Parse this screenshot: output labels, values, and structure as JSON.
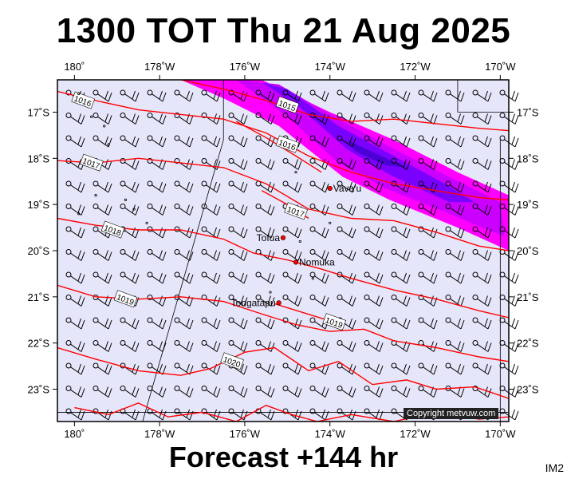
{
  "title": "1300 TOT Thu 21 Aug 2025",
  "footer": "Forecast +144 hr",
  "corner_tag": "IM2",
  "copyright": "Copyright metvuw.com",
  "colors": {
    "background": "#e6e6fa",
    "isobar": "#ff0000",
    "rain_light": "#ff00ff",
    "rain_medium": "#cc00ff",
    "rain_heavy": "#7a00ff",
    "rain_heaviest": "#4b00d6",
    "coast": "#000000",
    "place_marker": "#ff0000"
  },
  "map": {
    "lon_min": -180.4,
    "lon_max": -169.8,
    "lat_min": -23.7,
    "lat_max": -16.3,
    "lon_ticks": [
      {
        "value": -180,
        "label": "180˚"
      },
      {
        "value": -178,
        "label": "178˚W"
      },
      {
        "value": -176,
        "label": "176˚W"
      },
      {
        "value": -174,
        "label": "174˚W"
      },
      {
        "value": -172,
        "label": "172˚W"
      },
      {
        "value": -170,
        "label": "170˚W"
      }
    ],
    "lat_ticks": [
      {
        "value": -17,
        "label": "17˚S"
      },
      {
        "value": -18,
        "label": "18˚S"
      },
      {
        "value": -19,
        "label": "19˚S"
      },
      {
        "value": -20,
        "label": "20˚S"
      },
      {
        "value": -21,
        "label": "21˚S"
      },
      {
        "value": -22,
        "label": "22˚S"
      },
      {
        "value": -23,
        "label": "23˚S"
      }
    ],
    "places": [
      {
        "name": "Vava'u",
        "lon": -174.0,
        "lat": -18.65
      },
      {
        "name": "Tofua",
        "lon": -175.1,
        "lat": -19.72
      },
      {
        "name": "Nomuka",
        "lon": -174.8,
        "lat": -20.25
      },
      {
        "name": "Tongatapu",
        "lon": -175.2,
        "lat": -21.13
      }
    ],
    "isobars": [
      {
        "label": "1015",
        "label_lon": -175.0,
        "label_lat": -16.85,
        "points": [
          [
            -177.5,
            -16.3
          ],
          [
            -176.5,
            -16.5
          ],
          [
            -175.5,
            -16.75
          ],
          [
            -174.5,
            -17.05
          ],
          [
            -173.5,
            -17.2
          ],
          [
            -172.5,
            -17.15
          ],
          [
            -171.5,
            -17.25
          ],
          [
            -170.5,
            -17.35
          ],
          [
            -169.8,
            -17.4
          ]
        ]
      },
      {
        "label": "1016",
        "label_lon": -179.8,
        "label_lat": -16.75,
        "points": [
          [
            -180.4,
            -16.55
          ],
          [
            -179.5,
            -16.75
          ],
          [
            -178.5,
            -16.95
          ],
          [
            -177.5,
            -17.05
          ],
          [
            -176.5,
            -17.15
          ],
          [
            -175.5,
            -17.45
          ],
          [
            -174.5,
            -17.95
          ],
          [
            -173.5,
            -18.3
          ],
          [
            -172.5,
            -18.55
          ],
          [
            -171.5,
            -18.7
          ],
          [
            -170.5,
            -18.85
          ],
          [
            -169.8,
            -18.9
          ]
        ]
      },
      {
        "label": "1016",
        "label_lon": -175.0,
        "label_lat": -17.7,
        "points": [
          [
            -176.2,
            -17.2
          ],
          [
            -175.5,
            -17.55
          ],
          [
            -174.8,
            -17.95
          ],
          [
            -174.2,
            -18.3
          ]
        ]
      },
      {
        "label": "1017",
        "label_lon": -179.6,
        "label_lat": -18.1,
        "points": [
          [
            -180.4,
            -18.05
          ],
          [
            -179.5,
            -18.1
          ],
          [
            -178.5,
            -18.0
          ],
          [
            -177.5,
            -18.1
          ],
          [
            -176.5,
            -18.2
          ],
          [
            -175.5,
            -18.55
          ],
          [
            -174.5,
            -19.1
          ],
          [
            -173.5,
            -19.3
          ],
          [
            -172.5,
            -19.35
          ],
          [
            -171.5,
            -19.6
          ],
          [
            -170.5,
            -19.9
          ],
          [
            -169.8,
            -20.0
          ]
        ]
      },
      {
        "label": "1017",
        "label_lon": -174.8,
        "label_lat": -19.15,
        "points": [
          [
            -175.6,
            -18.7
          ],
          [
            -175.0,
            -19.0
          ],
          [
            -174.5,
            -19.3
          ]
        ]
      },
      {
        "label": "1018",
        "label_lon": -179.1,
        "label_lat": -19.55,
        "points": [
          [
            -180.4,
            -19.3
          ],
          [
            -179.5,
            -19.45
          ],
          [
            -178.5,
            -19.55
          ],
          [
            -177.5,
            -19.55
          ],
          [
            -176.5,
            -19.75
          ],
          [
            -175.8,
            -20.05
          ],
          [
            -175.0,
            -20.2
          ],
          [
            -174.2,
            -20.4
          ],
          [
            -173.5,
            -20.6
          ],
          [
            -172.5,
            -20.85
          ],
          [
            -171.5,
            -21.05
          ],
          [
            -170.5,
            -21.3
          ],
          [
            -169.8,
            -21.45
          ]
        ]
      },
      {
        "label": "1019",
        "label_lon": -178.8,
        "label_lat": -21.05,
        "points": [
          [
            -180.4,
            -20.75
          ],
          [
            -179.5,
            -21.0
          ],
          [
            -178.5,
            -21.05
          ],
          [
            -177.5,
            -21.0
          ],
          [
            -176.5,
            -21.1
          ],
          [
            -175.5,
            -21.4
          ],
          [
            -174.8,
            -21.6
          ],
          [
            -174.0,
            -21.75
          ],
          [
            -173.2,
            -21.7
          ],
          [
            -172.5,
            -21.95
          ],
          [
            -171.5,
            -22.1
          ],
          [
            -170.5,
            -22.3
          ],
          [
            -169.8,
            -22.4
          ]
        ]
      },
      {
        "label": "1019",
        "label_lon": -173.9,
        "label_lat": -21.55,
        "points": [
          [
            -175.3,
            -21.15
          ],
          [
            -174.6,
            -21.35
          ],
          [
            -173.9,
            -21.55
          ]
        ]
      },
      {
        "label": "1020",
        "label_lon": -176.3,
        "label_lat": -22.4,
        "points": [
          [
            -180.4,
            -22.1
          ],
          [
            -179.5,
            -22.35
          ],
          [
            -178.5,
            -22.6
          ],
          [
            -177.5,
            -22.7
          ],
          [
            -176.8,
            -22.55
          ],
          [
            -176.0,
            -22.2
          ],
          [
            -175.3,
            -22.1
          ],
          [
            -174.5,
            -22.6
          ],
          [
            -173.8,
            -22.4
          ],
          [
            -173.0,
            -22.9
          ],
          [
            -172.2,
            -22.8
          ],
          [
            -171.5,
            -23.0
          ],
          [
            -170.6,
            -22.95
          ],
          [
            -169.8,
            -23.2
          ]
        ]
      },
      {
        "label": "",
        "label_lon": 0,
        "label_lat": 0,
        "points": [
          [
            -180.0,
            -23.4
          ],
          [
            -179.2,
            -23.55
          ],
          [
            -178.5,
            -23.3
          ],
          [
            -177.8,
            -23.6
          ],
          [
            -177.0,
            -23.5
          ],
          [
            -176.2,
            -23.7
          ],
          [
            -175.5,
            -23.35
          ],
          [
            -174.9,
            -23.55
          ],
          [
            -174.3,
            -23.7
          ],
          [
            -173.5,
            -23.55
          ],
          [
            -172.5,
            -23.7
          ],
          [
            -171.5,
            -23.5
          ],
          [
            -170.5,
            -23.65
          ],
          [
            -169.8,
            -23.6
          ]
        ]
      }
    ],
    "rain_band": [
      {
        "level": "light",
        "points": [
          [
            -177.5,
            -16.3
          ],
          [
            -175.6,
            -16.3
          ],
          [
            -174.0,
            -17.0
          ],
          [
            -172.5,
            -17.6
          ],
          [
            -171.0,
            -18.3
          ],
          [
            -169.8,
            -18.8
          ],
          [
            -169.8,
            -20.0
          ],
          [
            -171.0,
            -19.5
          ],
          [
            -172.6,
            -18.9
          ],
          [
            -173.7,
            -18.4
          ],
          [
            -175.2,
            -17.3
          ],
          [
            -176.5,
            -16.7
          ]
        ]
      },
      {
        "level": "medium",
        "points": [
          [
            -176.2,
            -16.3
          ],
          [
            -175.2,
            -16.4
          ],
          [
            -173.9,
            -17.1
          ],
          [
            -172.6,
            -17.75
          ],
          [
            -171.2,
            -18.4
          ],
          [
            -170.0,
            -18.95
          ],
          [
            -169.9,
            -19.7
          ],
          [
            -171.2,
            -19.2
          ],
          [
            -172.7,
            -18.65
          ],
          [
            -173.8,
            -18.1
          ],
          [
            -175.0,
            -17.1
          ]
        ]
      },
      {
        "level": "heavy",
        "points": [
          [
            -175.6,
            -16.35
          ],
          [
            -175.0,
            -16.5
          ],
          [
            -173.8,
            -17.3
          ],
          [
            -172.5,
            -17.95
          ],
          [
            -171.3,
            -18.55
          ],
          [
            -170.6,
            -18.95
          ],
          [
            -171.2,
            -18.95
          ],
          [
            -172.6,
            -18.35
          ],
          [
            -173.6,
            -17.8
          ],
          [
            -174.7,
            -16.9
          ]
        ]
      },
      {
        "level": "heaviest",
        "points": [
          [
            -173.6,
            -17.6
          ],
          [
            -172.8,
            -17.95
          ],
          [
            -172.2,
            -18.2
          ],
          [
            -172.7,
            -18.15
          ],
          [
            -173.4,
            -17.85
          ]
        ]
      }
    ]
  }
}
